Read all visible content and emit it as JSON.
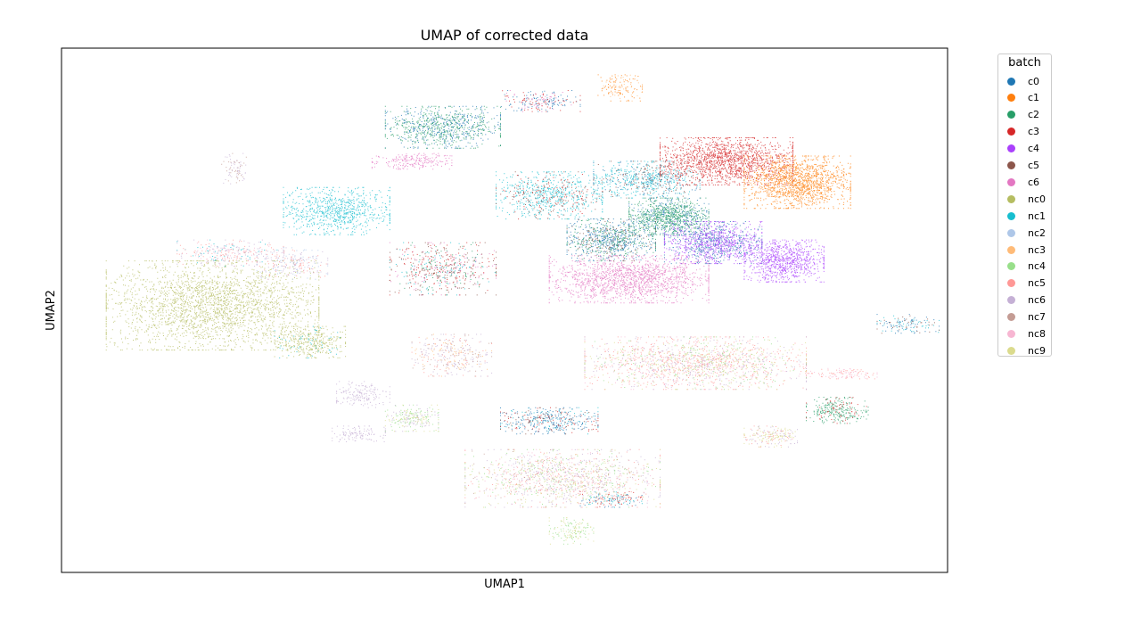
{
  "chart_data": {
    "type": "scatter",
    "title": "UMAP of corrected data",
    "xlabel": "UMAP1",
    "ylabel": "UMAP2",
    "xticks": [],
    "yticks": [],
    "grid": false,
    "legend": {
      "title": "batch",
      "placement": "right, outside plot, top",
      "entries": [
        {
          "name": "c0",
          "color": "#1f77b4"
        },
        {
          "name": "c1",
          "color": "#ff7f0e"
        },
        {
          "name": "c2",
          "color": "#279e68"
        },
        {
          "name": "c3",
          "color": "#d62728"
        },
        {
          "name": "c4",
          "color": "#aa40fc"
        },
        {
          "name": "c5",
          "color": "#8c564b"
        },
        {
          "name": "c6",
          "color": "#e377c2"
        },
        {
          "name": "nc0",
          "color": "#b5bd61"
        },
        {
          "name": "nc1",
          "color": "#17becf"
        },
        {
          "name": "nc2",
          "color": "#aec7e8"
        },
        {
          "name": "nc3",
          "color": "#ffbb78"
        },
        {
          "name": "nc4",
          "color": "#98df8a"
        },
        {
          "name": "nc5",
          "color": "#ff9896"
        },
        {
          "name": "nc6",
          "color": "#c5b0d5"
        },
        {
          "name": "nc7",
          "color": "#c49c94"
        },
        {
          "name": "nc8",
          "color": "#f7b6d2"
        },
        {
          "name": "nc9",
          "color": "#dbdb8d"
        }
      ]
    },
    "xlim": [
      0,
      100
    ],
    "ylim": [
      0,
      100
    ],
    "clusters": [
      {
        "cx": 17,
        "cy": 51,
        "rx": 12,
        "ry": 8.5,
        "n": 2600,
        "batches": {
          "nc0": 1
        }
      },
      {
        "cx": 28,
        "cy": 44,
        "rx": 4,
        "ry": 3,
        "n": 400,
        "batches": {
          "nc0": 0.85,
          "nc1": 0.15
        }
      },
      {
        "cx": 31,
        "cy": 69,
        "rx": 6,
        "ry": 4.5,
        "n": 800,
        "batches": {
          "nc1": 1
        }
      },
      {
        "cx": 19,
        "cy": 61,
        "rx": 6,
        "ry": 2.5,
        "n": 300,
        "batches": {
          "nc5": 0.3,
          "nc6": 0.3,
          "nc8": 0.2,
          "nc1": 0.2
        }
      },
      {
        "cx": 26,
        "cy": 59,
        "rx": 4,
        "ry": 3,
        "n": 250,
        "batches": {
          "nc6": 0.4,
          "nc5": 0.3,
          "nc2": 0.3
        }
      },
      {
        "cx": 19.5,
        "cy": 77,
        "rx": 1.5,
        "ry": 3,
        "n": 80,
        "batches": {
          "nc7": 0.5,
          "nc6": 0.5
        }
      },
      {
        "cx": 43,
        "cy": 85,
        "rx": 6.5,
        "ry": 4,
        "n": 900,
        "batches": {
          "c0": 0.45,
          "c2": 0.55
        }
      },
      {
        "cx": 39.5,
        "cy": 78.5,
        "rx": 4.5,
        "ry": 1.5,
        "n": 220,
        "batches": {
          "c6": 1
        }
      },
      {
        "cx": 54,
        "cy": 90,
        "rx": 4.5,
        "ry": 2,
        "n": 220,
        "batches": {
          "c0": 0.5,
          "c3": 0.3,
          "c6": 0.2
        }
      },
      {
        "cx": 63,
        "cy": 92.5,
        "rx": 2.5,
        "ry": 2.5,
        "n": 130,
        "batches": {
          "c1": 0.8,
          "nc3": 0.2
        }
      },
      {
        "cx": 43,
        "cy": 58,
        "rx": 6,
        "ry": 5,
        "n": 600,
        "batches": {
          "c3": 0.25,
          "c5": 0.25,
          "c6": 0.2,
          "c2": 0.15,
          "nc1": 0.15
        }
      },
      {
        "cx": 55,
        "cy": 72,
        "rx": 6,
        "ry": 4.5,
        "n": 800,
        "batches": {
          "nc1": 0.7,
          "c5": 0.15,
          "c3": 0.15
        }
      },
      {
        "cx": 66,
        "cy": 75,
        "rx": 6,
        "ry": 3.5,
        "n": 700,
        "batches": {
          "nc1": 0.6,
          "c0": 0.2,
          "c5": 0.2
        }
      },
      {
        "cx": 75,
        "cy": 78.5,
        "rx": 7.5,
        "ry": 4.5,
        "n": 1600,
        "batches": {
          "c3": 1
        }
      },
      {
        "cx": 83,
        "cy": 74.5,
        "rx": 6,
        "ry": 5,
        "n": 1500,
        "batches": {
          "c1": 1
        }
      },
      {
        "cx": 68.5,
        "cy": 68,
        "rx": 4.5,
        "ry": 3.5,
        "n": 1000,
        "batches": {
          "c2": 0.7,
          "c0": 0.3
        }
      },
      {
        "cx": 73.5,
        "cy": 63,
        "rx": 5.5,
        "ry": 4,
        "n": 1300,
        "batches": {
          "c4": 0.6,
          "c0": 0.4
        }
      },
      {
        "cx": 62,
        "cy": 63.5,
        "rx": 5,
        "ry": 4,
        "n": 900,
        "batches": {
          "c0": 0.5,
          "c2": 0.3,
          "c5": 0.2
        }
      },
      {
        "cx": 64,
        "cy": 56,
        "rx": 9,
        "ry": 4.5,
        "n": 1600,
        "batches": {
          "c6": 1
        }
      },
      {
        "cx": 81.5,
        "cy": 59.5,
        "rx": 4.5,
        "ry": 4,
        "n": 900,
        "batches": {
          "c4": 1
        }
      },
      {
        "cx": 71.5,
        "cy": 40,
        "rx": 12.5,
        "ry": 5,
        "n": 1800,
        "batches": {
          "nc5": 0.35,
          "nc9": 0.2,
          "nc6": 0.2,
          "nc8": 0.15,
          "nc4": 0.1
        }
      },
      {
        "cx": 44,
        "cy": 41.5,
        "rx": 4.5,
        "ry": 4,
        "n": 350,
        "batches": {
          "nc6": 0.4,
          "nc7": 0.2,
          "nc5": 0.2,
          "nc3": 0.2
        }
      },
      {
        "cx": 34,
        "cy": 34,
        "rx": 3,
        "ry": 2.5,
        "n": 180,
        "batches": {
          "nc6": 1
        }
      },
      {
        "cx": 33.5,
        "cy": 26.5,
        "rx": 3,
        "ry": 1.5,
        "n": 120,
        "batches": {
          "nc6": 1
        }
      },
      {
        "cx": 39.5,
        "cy": 29.5,
        "rx": 3,
        "ry": 2.5,
        "n": 250,
        "batches": {
          "nc4": 0.4,
          "nc9": 0.3,
          "nc6": 0.3
        }
      },
      {
        "cx": 55,
        "cy": 29,
        "rx": 5.5,
        "ry": 2.5,
        "n": 450,
        "batches": {
          "c0": 0.5,
          "nc1": 0.2,
          "c5": 0.15,
          "c3": 0.15
        }
      },
      {
        "cx": 56.5,
        "cy": 18,
        "rx": 11,
        "ry": 5.5,
        "n": 1400,
        "batches": {
          "nc6": 0.25,
          "nc9": 0.2,
          "nc5": 0.2,
          "nc4": 0.15,
          "nc7": 0.1,
          "nc8": 0.1
        }
      },
      {
        "cx": 57.5,
        "cy": 8,
        "rx": 2.5,
        "ry": 2.5,
        "n": 150,
        "batches": {
          "nc4": 0.6,
          "nc9": 0.4
        }
      },
      {
        "cx": 62,
        "cy": 14,
        "rx": 3.5,
        "ry": 1.5,
        "n": 150,
        "batches": {
          "nc1": 0.4,
          "c0": 0.3,
          "c3": 0.3
        }
      },
      {
        "cx": 87.5,
        "cy": 31,
        "rx": 3.5,
        "ry": 2.5,
        "n": 300,
        "batches": {
          "c2": 0.8,
          "c3": 0.2
        }
      },
      {
        "cx": 88,
        "cy": 38,
        "rx": 4,
        "ry": 1,
        "n": 120,
        "batches": {
          "nc5": 0.5,
          "nc8": 0.5
        }
      },
      {
        "cx": 80,
        "cy": 26,
        "rx": 3,
        "ry": 2,
        "n": 200,
        "batches": {
          "nc9": 0.4,
          "nc5": 0.3,
          "nc6": 0.3
        }
      },
      {
        "cx": 95.5,
        "cy": 47.5,
        "rx": 3.5,
        "ry": 1.8,
        "n": 140,
        "batches": {
          "c0": 0.4,
          "nc1": 0.3,
          "c5": 0.3
        }
      }
    ]
  }
}
